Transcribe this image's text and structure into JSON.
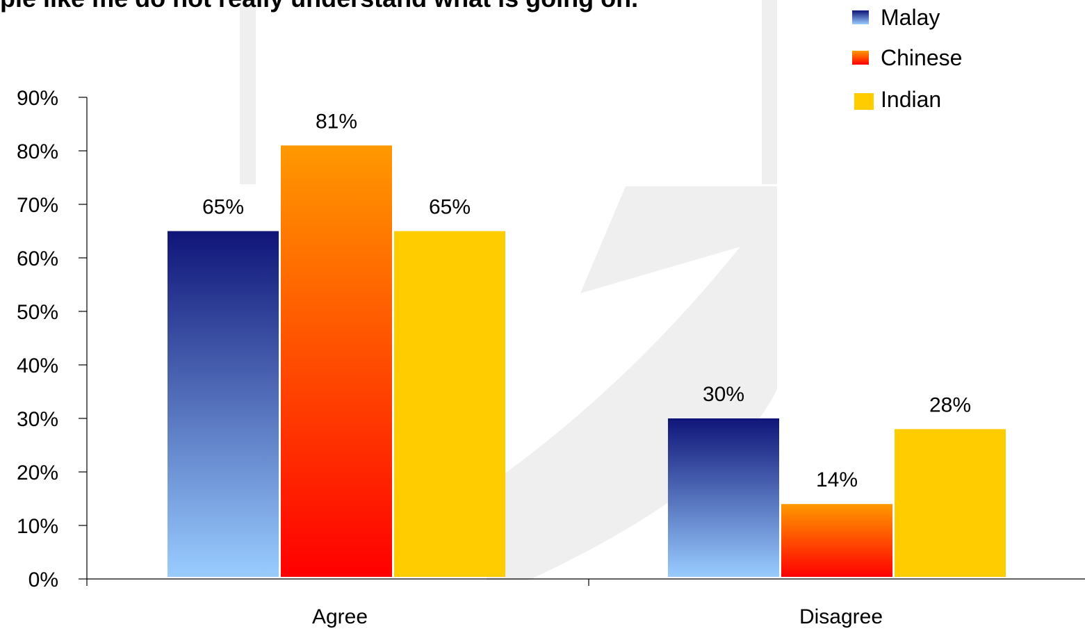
{
  "chart_data": {
    "type": "bar",
    "title": "ple like me do not really understand what is going on.",
    "categories": [
      "Agree",
      "Disagree"
    ],
    "series": [
      {
        "name": "Malay",
        "values": [
          65,
          30
        ],
        "color_top": "#0f1578",
        "color_bottom": "#99ccff"
      },
      {
        "name": "Chinese",
        "values": [
          81,
          14
        ],
        "color_top": "#ff9900",
        "color_bottom": "#ff0000"
      },
      {
        "name": "Indian",
        "values": [
          65,
          28
        ],
        "color_top": "#ffcc00",
        "color_bottom": "#ffcc00"
      }
    ],
    "data_labels": [
      [
        "65%",
        "30%"
      ],
      [
        "81%",
        "14%"
      ],
      [
        "65%",
        "28%"
      ]
    ],
    "ylim": [
      0,
      90
    ],
    "yticks": [
      "0%",
      "10%",
      "20%",
      "30%",
      "40%",
      "50%",
      "60%",
      "70%",
      "80%",
      "90%"
    ],
    "xlabel": "",
    "ylabel": "",
    "legend_position": "top-right",
    "grid": false
  }
}
